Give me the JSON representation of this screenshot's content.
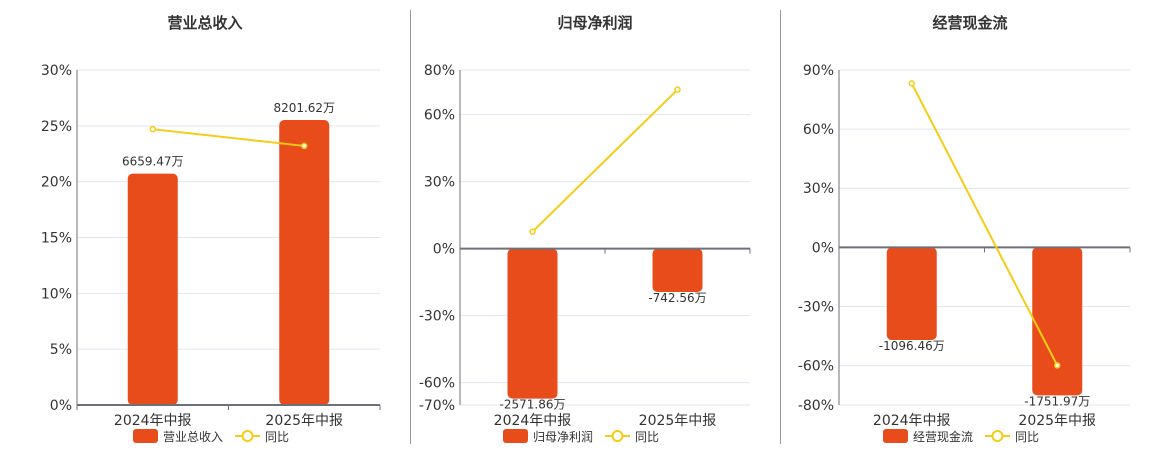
{
  "colors": {
    "bar": "#e84c1b",
    "line": "#f5cc16",
    "axis": "#6e7079",
    "grid": "#e0e6f1",
    "text": "#333333"
  },
  "chart_data": [
    {
      "type": "bar+line",
      "title": "营业总收入",
      "categories": [
        "2024年中报",
        "2025年中报"
      ],
      "bar_series": {
        "name": "营业总收入",
        "values": [
          6659.47,
          8201.62
        ],
        "labels": [
          "6659.47万",
          "8201.62万"
        ],
        "unit": "万"
      },
      "line_series": {
        "name": "同比",
        "values": [
          24.7,
          23.2
        ],
        "unit": "%"
      },
      "y_ticks": [
        "0%",
        "5%",
        "10%",
        "15%",
        "20%",
        "25%",
        "30%"
      ],
      "y_tick_values": [
        0,
        5,
        10,
        15,
        20,
        25,
        30
      ],
      "ylim": [
        0,
        30
      ],
      "grid": true,
      "legend": "bottom"
    },
    {
      "type": "bar+line",
      "title": "归母净利润",
      "categories": [
        "2024年中报",
        "2025年中报"
      ],
      "bar_series": {
        "name": "归母净利润",
        "values": [
          -2571.86,
          -742.56
        ],
        "labels": [
          "-2571.86万",
          "-742.56万"
        ],
        "unit": "万"
      },
      "line_series": {
        "name": "同比",
        "values": [
          7.6,
          71.2
        ],
        "unit": "%"
      },
      "y_ticks": [
        "-70%",
        "-60%",
        "-30%",
        "0%",
        "30%",
        "60%",
        "80%"
      ],
      "y_tick_values": [
        -70,
        -60,
        -30,
        0,
        30,
        60,
        80
      ],
      "ylim": [
        -70,
        80
      ],
      "grid": true,
      "legend": "bottom"
    },
    {
      "type": "bar+line",
      "title": "经营现金流",
      "categories": [
        "2024年中报",
        "2025年中报"
      ],
      "bar_series": {
        "name": "经营现金流",
        "values": [
          -1096.46,
          -1751.97
        ],
        "labels": [
          "-1096.46万",
          "-1751.97万"
        ],
        "unit": "万"
      },
      "line_series": {
        "name": "同比",
        "values": [
          83.2,
          -59.9
        ],
        "unit": "%"
      },
      "y_ticks": [
        "-80%",
        "-60%",
        "-30%",
        "0%",
        "30%",
        "60%",
        "90%"
      ],
      "y_tick_values": [
        -80,
        -60,
        -30,
        0,
        30,
        60,
        90
      ],
      "ylim": [
        -80,
        90
      ],
      "grid": true,
      "legend": "bottom"
    }
  ]
}
